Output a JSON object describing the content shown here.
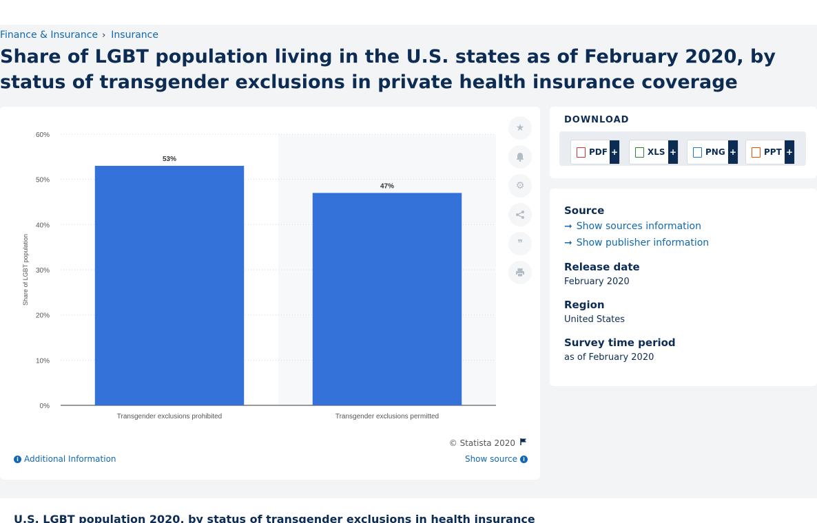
{
  "breadcrumb": {
    "items": [
      "Finance & Insurance",
      "Insurance"
    ],
    "separator": "›"
  },
  "title": "Share of LGBT population living in the U.S. states as of February 2020, by status of transgender exclusions in private health insurance coverage",
  "chart_data": {
    "type": "bar",
    "categories": [
      "Transgender exclusions prohibited",
      "Transgender exclusions permitted"
    ],
    "values": [
      53,
      47
    ],
    "value_labels": [
      "53%",
      "47%"
    ],
    "ylabel": "Share of LGBT population",
    "ylim": [
      0,
      60
    ],
    "yticks": [
      0,
      10,
      20,
      30,
      40,
      50,
      60
    ],
    "ytick_labels": [
      "0%",
      "10%",
      "20%",
      "30%",
      "40%",
      "50%",
      "60%"
    ],
    "grid": true,
    "bar_color": "#3472d9",
    "highlight_color": "#f7f8f9"
  },
  "chart_footer": {
    "copyright": "© Statista 2020",
    "additional_info": "Additional Information",
    "show_source": "Show source"
  },
  "tools": [
    "star-icon",
    "bell-icon",
    "gear-icon",
    "share-icon",
    "quote-icon",
    "print-icon"
  ],
  "download": {
    "title": "DOWNLOAD",
    "buttons": [
      {
        "label": "PDF",
        "plus": "+",
        "color": "#d32f2f"
      },
      {
        "label": "XLS",
        "plus": "+",
        "color": "#2e7d32"
      },
      {
        "label": "PNG",
        "plus": "+",
        "color": "#1976d2"
      },
      {
        "label": "PPT",
        "plus": "+",
        "color": "#e65100"
      }
    ]
  },
  "info": {
    "source_label": "Source",
    "show_sources": "Show sources information",
    "show_publisher": "Show publisher information",
    "release_label": "Release date",
    "release_value": "February 2020",
    "region_label": "Region",
    "region_value": "United States",
    "period_label": "Survey time period",
    "period_value": "as of February 2020"
  },
  "bottom": {
    "title": "U.S. LGBT population 2020, by status of transgender exclusions in health insurance"
  }
}
